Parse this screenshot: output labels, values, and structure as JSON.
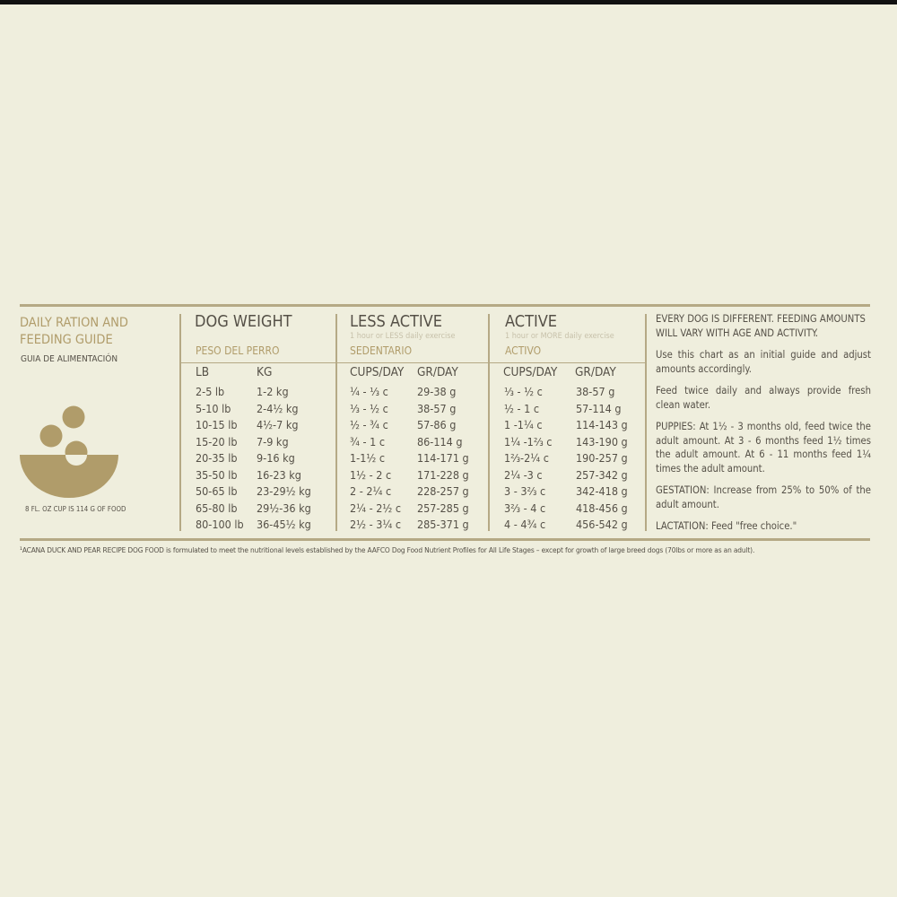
{
  "guide": {
    "title_line1": "DAILY RATION AND",
    "title_line2": "FEEDING GUIDE",
    "subtitle": "GUIA DE ALIMENTACIÓN",
    "cup_note": "8 FL. OZ CUP IS 114 G OF FOOD",
    "icon": "food-bowl-icon",
    "accent_color": "#b09c6a"
  },
  "dog_weight": {
    "title": "DOG WEIGHT",
    "spanish": "PESO DEL PERRO",
    "col1": "LB",
    "col2": "KG"
  },
  "less_active": {
    "title": "LESS ACTIVE",
    "note": "1 hour or LESS daily exercise",
    "spanish": "SEDENTARIO",
    "col1": "CUPS/DAY",
    "col2": "GR/DAY"
  },
  "active": {
    "title": "ACTIVE",
    "note": "1 hour or MORE daily exercise",
    "spanish": "ACTIVO",
    "col1": "CUPS/DAY",
    "col2": "GR/DAY"
  },
  "rows": [
    [
      "2-5 lb",
      "1-2 kg",
      "¼ - ⅓ c",
      "29-38 g",
      "⅓ - ½ c",
      "38-57 g"
    ],
    [
      "5-10 lb",
      "2-4½ kg",
      "⅓ - ½ c",
      "38-57 g",
      "½ - 1 c",
      "57-114 g"
    ],
    [
      "10-15 lb",
      "4½-7 kg",
      "½ - ¾ c",
      "57-86 g",
      "1 -1¼ c",
      "114-143 g"
    ],
    [
      "15-20 lb",
      "7-9 kg",
      "¾ - 1 c",
      "86-114 g",
      "1¼ -1⅔ c",
      "143-190 g"
    ],
    [
      "20-35 lb",
      "9-16 kg",
      "1-1½ c",
      "114-171 g",
      "1⅔-2¼ c",
      "190-257 g"
    ],
    [
      "35-50 lb",
      "16-23 kg",
      "1½ - 2 c",
      "171-228 g",
      "2¼ -3 c",
      "257-342 g"
    ],
    [
      "50-65 lb",
      "23-29½ kg",
      "2 - 2¼ c",
      "228-257 g",
      "3 - 3⅔ c",
      "342-418 g"
    ],
    [
      "65-80 lb",
      "29½-36 kg",
      "2¼ - 2½ c",
      "257-285 g",
      "3⅔ - 4 c",
      "418-456 g"
    ],
    [
      "80-100 lb",
      "36-45½ kg",
      "2½ - 3¼ c",
      "285-371 g",
      "4 - 4¾ c",
      "456-542 g"
    ]
  ],
  "notes": [
    "EVERY DOG IS DIFFERENT. FEEDING AMOUNTS WILL VARY WITH AGE AND ACTIVITY.",
    "Use this chart as an initial guide and adjust amounts accordingly.",
    "Feed twice daily and always provide fresh clean water.",
    "PUPPIES: At 1½ - 3 months old, feed twice the adult amount. At 3 - 6 months feed 1½ times the adult amount. At 6 - 11 months feed 1¼ times the adult amount.",
    "GESTATION: Increase from 25% to 50% of the adult amount.",
    "LACTATION: Feed \"free choice.\""
  ],
  "footnote": "¹ACANA DUCK AND PEAR RECIPE DOG FOOD is formulated to meet the nutritional levels established by the AAFCO Dog Food Nutrient Profiles for All Life Stages – except for growth of large breed dogs (70lbs or more as an adult)."
}
